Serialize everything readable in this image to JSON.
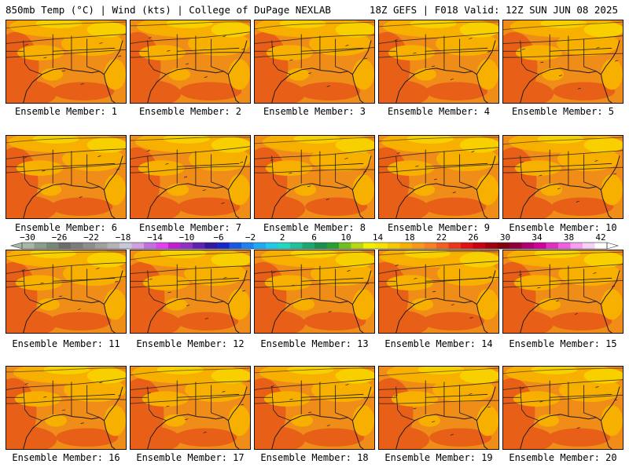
{
  "header": {
    "left": "850mb Temp (°C) | Wind (kts) | College of DuPage NEXLAB",
    "right": "18Z GEFS | F018 Valid: 12Z SUN JUN 08 2025"
  },
  "members": [
    {
      "label": "Ensemble Member: 1"
    },
    {
      "label": "Ensemble Member: 2"
    },
    {
      "label": "Ensemble Member: 3"
    },
    {
      "label": "Ensemble Member: 4"
    },
    {
      "label": "Ensemble Member: 5"
    },
    {
      "label": "Ensemble Member: 6"
    },
    {
      "label": "Ensemble Member: 7"
    },
    {
      "label": "Ensemble Member: 8"
    },
    {
      "label": "Ensemble Member: 9"
    },
    {
      "label": "Ensemble Member: 10"
    },
    {
      "label": "Ensemble Member: 11"
    },
    {
      "label": "Ensemble Member: 12"
    },
    {
      "label": "Ensemble Member: 13"
    },
    {
      "label": "Ensemble Member: 14"
    },
    {
      "label": "Ensemble Member: 15"
    },
    {
      "label": "Ensemble Member: 16"
    },
    {
      "label": "Ensemble Member: 17"
    },
    {
      "label": "Ensemble Member: 18"
    },
    {
      "label": "Ensemble Member: 19"
    },
    {
      "label": "Ensemble Member: 20"
    }
  ],
  "colorbar": {
    "tick_labels": [
      "−30",
      "−26",
      "−22",
      "−18",
      "−14",
      "−10",
      "−6",
      "−2",
      "2",
      "6",
      "10",
      "14",
      "18",
      "22",
      "26",
      "30",
      "34",
      "38",
      "42"
    ],
    "colors": [
      "#a8b8a8",
      "#8c9c8c",
      "#788878",
      "#6c6c6c",
      "#7c7c7c",
      "#8e8e8e",
      "#a0a0a0",
      "#b4b4b4",
      "#c8c8d8",
      "#d0a0e0",
      "#c070e0",
      "#e040f0",
      "#c020d0",
      "#9030c0",
      "#6020b0",
      "#3018a0",
      "#1828c8",
      "#1858e0",
      "#2080f0",
      "#20a8f0",
      "#20c8e8",
      "#20d8c0",
      "#20c098",
      "#18a870",
      "#189050",
      "#28a030",
      "#70c020",
      "#b8d810",
      "#f0f000",
      "#f8e000",
      "#f8c800",
      "#f8b000",
      "#f89818",
      "#f88020",
      "#f06020",
      "#e83818",
      "#e01010",
      "#c80010",
      "#a00010",
      "#800010",
      "#900038",
      "#b00070",
      "#d00098",
      "#e030c0",
      "#f060e0",
      "#f8a0f0",
      "#f8d0f8",
      "#ffffff"
    ],
    "units": "°C"
  },
  "palette": {
    "base": "#f08c18",
    "light": "#f8b000",
    "yellow": "#f8d000",
    "dark": "#e86018",
    "contour": "#1a1a1a"
  }
}
